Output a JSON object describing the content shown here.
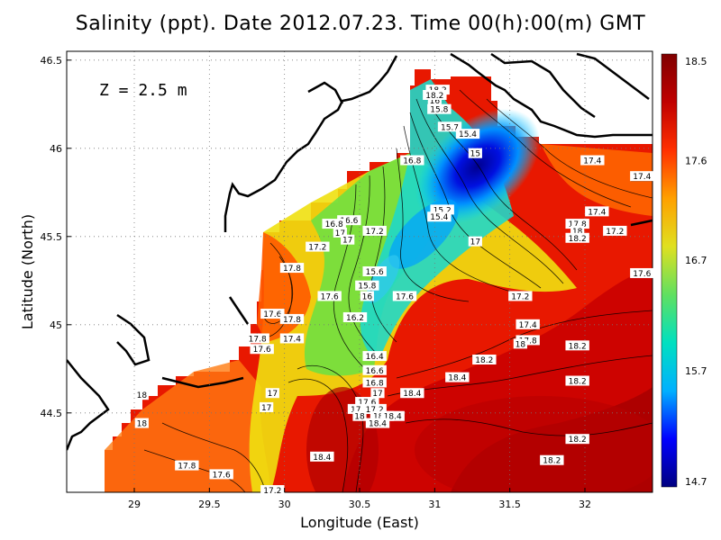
{
  "title": "Salinity (ppt). Date 2012.07.23. Time 00(h):00(m) GMT",
  "depth_label": "Z = 2.5 m",
  "axes": {
    "xlabel": "Longitude (East)",
    "ylabel": "Latitude (North)",
    "xlim": [
      28.55,
      32.45
    ],
    "ylim": [
      44.05,
      46.55
    ],
    "xticks": [
      "29",
      "29.5",
      "30",
      "30.5",
      "31",
      "31.5",
      "32"
    ],
    "yticks": [
      "44.5",
      "45",
      "45.5",
      "46",
      "46.5"
    ],
    "grid": "dotted"
  },
  "colorbar": {
    "ticks": [
      "18.5",
      "17.6",
      "16.7",
      "15.7",
      "14.7"
    ],
    "min": 14.7,
    "max": 18.5,
    "colors": [
      "#000080",
      "#0000ff",
      "#00b0ff",
      "#00e0c0",
      "#60e060",
      "#e0e020",
      "#ffa000",
      "#ff3000",
      "#c00000",
      "#800000"
    ]
  },
  "contour_labels": [
    {
      "lon": 31.02,
      "lat": 46.33,
      "text": "18.2"
    },
    {
      "lon": 31.0,
      "lat": 46.27,
      "text": "16"
    },
    {
      "lon": 31.03,
      "lat": 46.22,
      "text": "15.8"
    },
    {
      "lon": 31.1,
      "lat": 46.12,
      "text": "15.7"
    },
    {
      "lon": 31.22,
      "lat": 46.08,
      "text": "15.4"
    },
    {
      "lon": 31.27,
      "lat": 45.97,
      "text": "15"
    },
    {
      "lon": 30.85,
      "lat": 45.93,
      "text": "16.8"
    },
    {
      "lon": 31.05,
      "lat": 45.65,
      "text": "15.2"
    },
    {
      "lon": 31.03,
      "lat": 45.61,
      "text": "15.4"
    },
    {
      "lon": 30.43,
      "lat": 45.59,
      "text": "16.6"
    },
    {
      "lon": 30.33,
      "lat": 45.57,
      "text": "16.8"
    },
    {
      "lon": 30.37,
      "lat": 45.52,
      "text": "17"
    },
    {
      "lon": 30.42,
      "lat": 45.48,
      "text": "17"
    },
    {
      "lon": 30.6,
      "lat": 45.53,
      "text": "17.2"
    },
    {
      "lon": 30.22,
      "lat": 45.44,
      "text": "17.2"
    },
    {
      "lon": 31.27,
      "lat": 45.47,
      "text": "17"
    },
    {
      "lon": 30.05,
      "lat": 45.32,
      "text": "17.8"
    },
    {
      "lon": 30.6,
      "lat": 45.3,
      "text": "15.6"
    },
    {
      "lon": 30.55,
      "lat": 45.22,
      "text": "15.8"
    },
    {
      "lon": 30.55,
      "lat": 45.16,
      "text": "16"
    },
    {
      "lon": 30.3,
      "lat": 45.16,
      "text": "17.6"
    },
    {
      "lon": 30.8,
      "lat": 45.16,
      "text": "17.6"
    },
    {
      "lon": 31.57,
      "lat": 45.16,
      "text": "17.2"
    },
    {
      "lon": 29.92,
      "lat": 45.06,
      "text": "17.6"
    },
    {
      "lon": 30.05,
      "lat": 45.03,
      "text": "17.8"
    },
    {
      "lon": 30.47,
      "lat": 45.04,
      "text": "16.2"
    },
    {
      "lon": 31.62,
      "lat": 45.0,
      "text": "17.4"
    },
    {
      "lon": 29.82,
      "lat": 44.92,
      "text": "17.8"
    },
    {
      "lon": 30.05,
      "lat": 44.92,
      "text": "17.4"
    },
    {
      "lon": 29.85,
      "lat": 44.86,
      "text": "17.6"
    },
    {
      "lon": 31.62,
      "lat": 44.91,
      "text": "17.8"
    },
    {
      "lon": 31.57,
      "lat": 44.89,
      "text": "18"
    },
    {
      "lon": 31.95,
      "lat": 44.88,
      "text": "18.2"
    },
    {
      "lon": 30.6,
      "lat": 44.82,
      "text": "16.4"
    },
    {
      "lon": 31.33,
      "lat": 44.8,
      "text": "18.2"
    },
    {
      "lon": 30.6,
      "lat": 44.74,
      "text": "16.6"
    },
    {
      "lon": 31.15,
      "lat": 44.7,
      "text": "18.4"
    },
    {
      "lon": 31.95,
      "lat": 44.68,
      "text": "18.2"
    },
    {
      "lon": 30.6,
      "lat": 44.67,
      "text": "16.8"
    },
    {
      "lon": 30.62,
      "lat": 44.61,
      "text": "17"
    },
    {
      "lon": 29.92,
      "lat": 44.61,
      "text": "17"
    },
    {
      "lon": 30.85,
      "lat": 44.61,
      "text": "18.4"
    },
    {
      "lon": 29.05,
      "lat": 44.6,
      "text": "18"
    },
    {
      "lon": 30.55,
      "lat": 44.56,
      "text": "17.6"
    },
    {
      "lon": 29.88,
      "lat": 44.53,
      "text": "17"
    },
    {
      "lon": 30.5,
      "lat": 44.52,
      "text": "17.8"
    },
    {
      "lon": 30.6,
      "lat": 44.52,
      "text": "17.2"
    },
    {
      "lon": 30.5,
      "lat": 44.48,
      "text": "18"
    },
    {
      "lon": 30.65,
      "lat": 44.48,
      "text": "18.2"
    },
    {
      "lon": 30.72,
      "lat": 44.48,
      "text": "18.4"
    },
    {
      "lon": 30.62,
      "lat": 44.44,
      "text": "18.4"
    },
    {
      "lon": 29.05,
      "lat": 44.44,
      "text": "18"
    },
    {
      "lon": 31.95,
      "lat": 44.35,
      "text": "18.2"
    },
    {
      "lon": 30.25,
      "lat": 44.25,
      "text": "18.4"
    },
    {
      "lon": 31.78,
      "lat": 44.23,
      "text": "18.2"
    },
    {
      "lon": 29.35,
      "lat": 44.2,
      "text": "17.8"
    },
    {
      "lon": 29.58,
      "lat": 44.15,
      "text": "17.6"
    },
    {
      "lon": 29.92,
      "lat": 44.06,
      "text": "17.2"
    },
    {
      "lon": 31.0,
      "lat": 46.3,
      "text": "18.2"
    },
    {
      "lon": 32.05,
      "lat": 45.93,
      "text": "17.4"
    },
    {
      "lon": 32.38,
      "lat": 45.84,
      "text": "17.4"
    },
    {
      "lon": 32.08,
      "lat": 45.64,
      "text": "17.4"
    },
    {
      "lon": 31.95,
      "lat": 45.57,
      "text": "17.8"
    },
    {
      "lon": 31.95,
      "lat": 45.53,
      "text": "18"
    },
    {
      "lon": 31.95,
      "lat": 45.49,
      "text": "18.2"
    },
    {
      "lon": 32.2,
      "lat": 45.53,
      "text": "17.2"
    },
    {
      "lon": 32.38,
      "lat": 45.29,
      "text": "17.6"
    }
  ]
}
